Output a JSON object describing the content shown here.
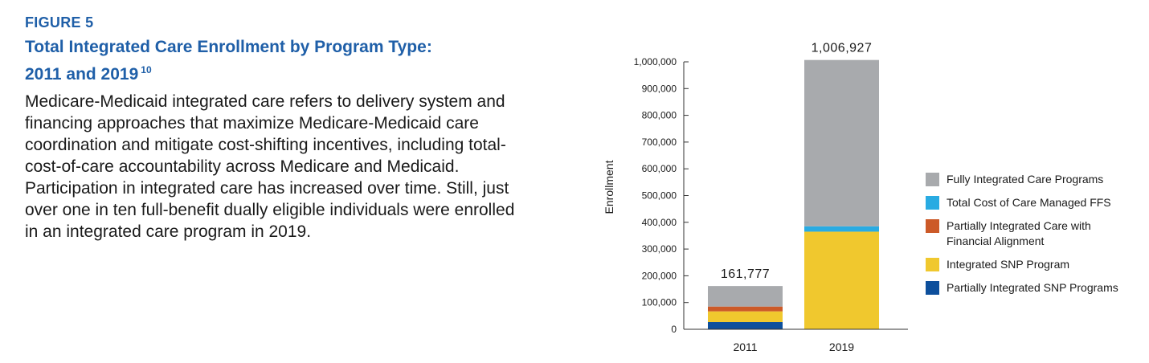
{
  "figure_label": "FIGURE 5",
  "title_line1": "Total Integrated Care Enrollment by Program Type:",
  "title_line2": "2011 and 2019",
  "title_footnote": "10",
  "body_text": "Medicare-Medicaid integrated care refers to delivery system and financing approaches that maximize Medicare-Medicaid care coordination and mitigate cost-shifting incentives, including total-cost-of-care accountability across Medicare and Medicaid. Participation in integrated care has increased over time. Still, just over one in ten full-benefit dually eligible individuals were enrolled in an integrated care program in 2019.",
  "chart_data": {
    "type": "bar",
    "stacked": true,
    "categories": [
      "2011",
      "2019"
    ],
    "ylabel": "Enrollment",
    "xlabel": "",
    "ylim": [
      0,
      1000000
    ],
    "yticks": [
      0,
      100000,
      200000,
      300000,
      400000,
      500000,
      600000,
      700000,
      800000,
      900000,
      1000000
    ],
    "ytick_labels": [
      "0",
      "100,000",
      "200,000",
      "300,000",
      "400,000",
      "500,000",
      "600,000",
      "700,000",
      "800,000",
      "900,000",
      "1,000,000"
    ],
    "totals": [
      161777,
      1006927
    ],
    "total_labels": [
      "161,777",
      "1,006,927"
    ],
    "series": [
      {
        "name": "Partially Integrated SNP Programs",
        "color": "#0d4f9c",
        "values": [
          27000,
          0
        ]
      },
      {
        "name": "Integrated SNP Program",
        "color": "#f0c82e",
        "values": [
          40000,
          365000
        ]
      },
      {
        "name": "Partially Integrated Care with Financial Alignment",
        "color": "#cc5a28",
        "values": [
          18000,
          0
        ]
      },
      {
        "name": "Total Cost of Care Managed FFS",
        "color": "#29abe2",
        "values": [
          0,
          20000
        ]
      },
      {
        "name": "Fully Integrated Care Programs",
        "color": "#a8aaad",
        "values": [
          76777,
          621927
        ]
      }
    ],
    "legend_order": [
      "Fully Integrated Care Programs",
      "Total Cost of Care Managed FFS",
      "Partially Integrated Care with Financial Alignment",
      "Integrated SNP Program",
      "Partially Integrated SNP Programs"
    ],
    "legend_position": "right",
    "grid": false
  }
}
